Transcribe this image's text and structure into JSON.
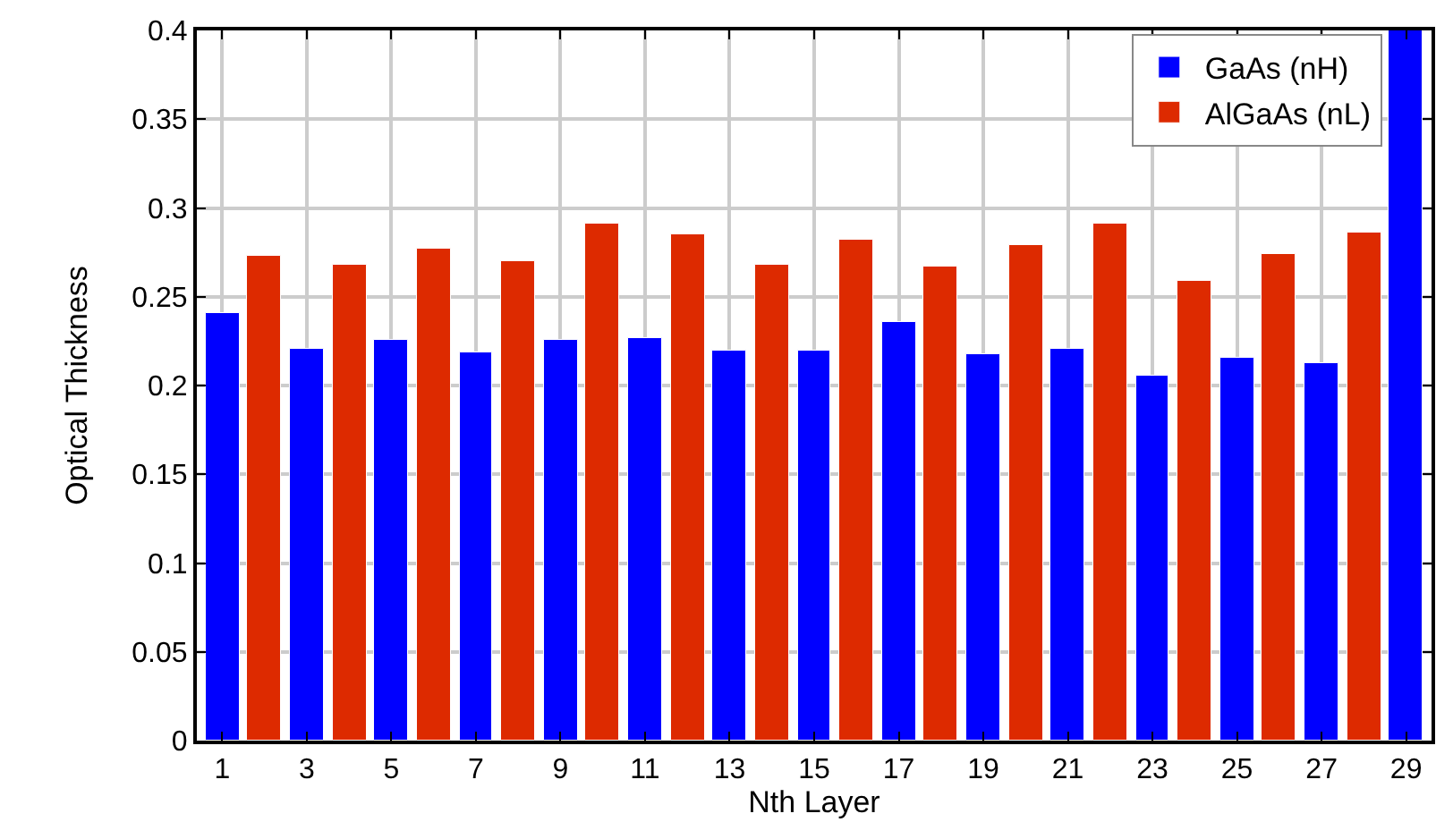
{
  "chart_data": {
    "type": "bar",
    "xlabel": "Nth Layer",
    "ylabel": "Optical Thickness",
    "xlim": [
      0.4,
      29.6
    ],
    "xticks": [
      1,
      3,
      5,
      7,
      9,
      11,
      13,
      15,
      17,
      19,
      21,
      23,
      25,
      27,
      29
    ],
    "ylim": [
      0,
      0.4
    ],
    "yticks": [
      0,
      0.05,
      0.1,
      0.15,
      0.2,
      0.25,
      0.3,
      0.35,
      0.4
    ],
    "grid": true,
    "legend": "top right",
    "series": [
      {
        "name": "GaAs (nH)",
        "color": "#0000ff",
        "x": [
          1,
          3,
          5,
          7,
          9,
          11,
          13,
          15,
          17,
          19,
          21,
          23,
          25,
          27,
          29
        ],
        "values": [
          0.241,
          0.221,
          0.226,
          0.219,
          0.226,
          0.227,
          0.22,
          0.22,
          0.236,
          0.218,
          0.221,
          0.206,
          0.216,
          0.213,
          0.4
        ]
      },
      {
        "name": "AlGaAs (nL)",
        "color": "#dd2a00",
        "x": [
          2,
          4,
          6,
          8,
          10,
          12,
          14,
          16,
          18,
          20,
          22,
          24,
          26,
          28
        ],
        "values": [
          0.273,
          0.268,
          0.277,
          0.27,
          0.291,
          0.285,
          0.268,
          0.282,
          0.267,
          0.279,
          0.291,
          0.259,
          0.274,
          0.286
        ]
      }
    ]
  }
}
